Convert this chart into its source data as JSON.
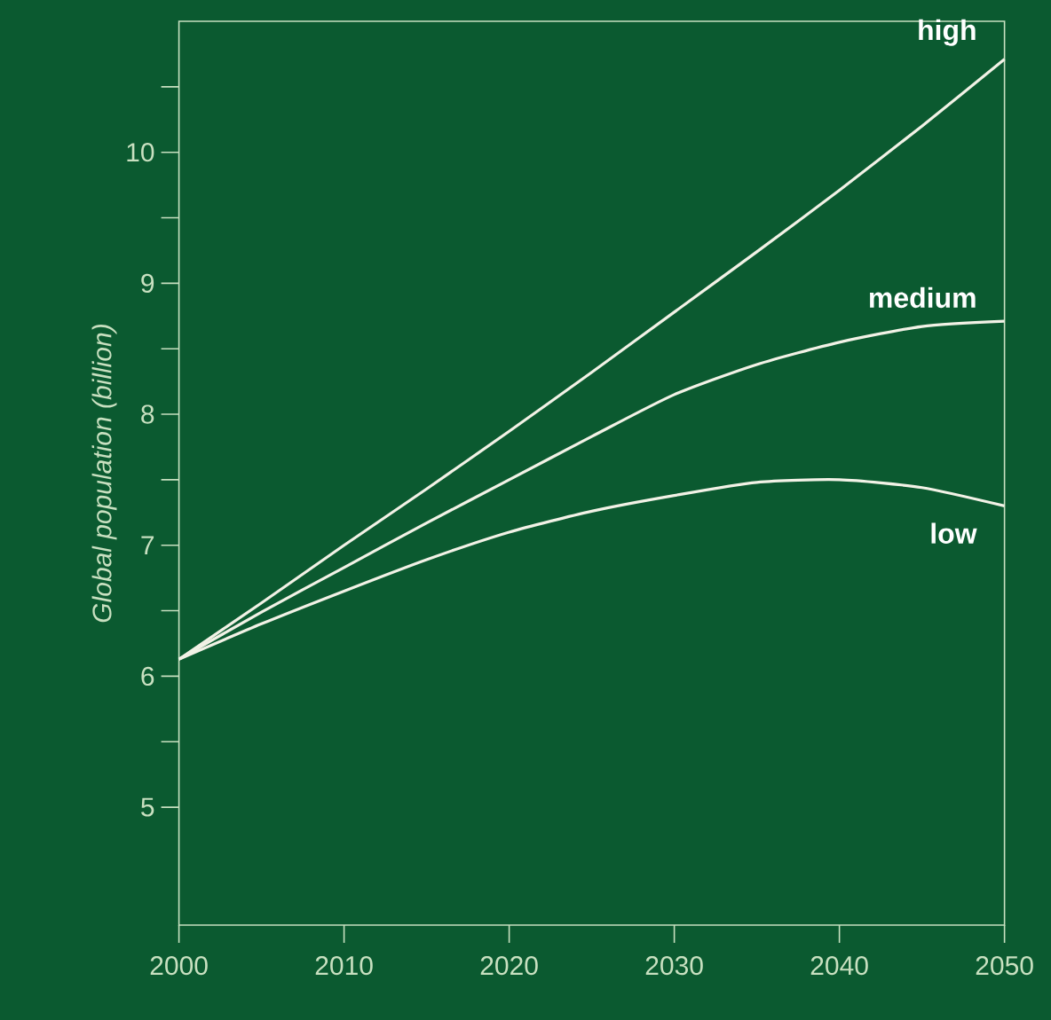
{
  "chart_data": {
    "type": "line",
    "ylabel": "Global population (billion)",
    "x": [
      2000,
      2005,
      2010,
      2015,
      2020,
      2025,
      2030,
      2035,
      2040,
      2045,
      2050
    ],
    "series": [
      {
        "name": "high",
        "color": "#f2f2e6",
        "values": [
          6.13,
          6.56,
          7.0,
          7.43,
          7.87,
          8.32,
          8.78,
          9.24,
          9.71,
          10.2,
          10.71
        ]
      },
      {
        "name": "medium",
        "color": "#f2f2e6",
        "values": [
          6.13,
          6.49,
          6.83,
          7.17,
          7.5,
          7.83,
          8.15,
          8.38,
          8.55,
          8.67,
          8.71
        ]
      },
      {
        "name": "low",
        "color": "#f2f2e6",
        "values": [
          6.13,
          6.4,
          6.65,
          6.89,
          7.1,
          7.26,
          7.38,
          7.48,
          7.5,
          7.44,
          7.3
        ]
      }
    ],
    "xlim": [
      2000,
      2050
    ],
    "ylim": [
      4.1,
      11
    ],
    "xticks": [
      2000,
      2010,
      2020,
      2030,
      2040,
      2050
    ],
    "yticks": [
      5,
      {
        "value": 5.5,
        "label": null
      },
      6,
      {
        "value": 6.5,
        "label": null
      },
      7,
      {
        "value": 7.5,
        "label": null
      },
      8,
      {
        "value": 8.5,
        "label": null
      },
      9,
      {
        "value": 9.5,
        "label": null
      },
      10,
      {
        "value": 10.5,
        "label": null
      }
    ],
    "grid": false,
    "legend": false,
    "marker": "none",
    "line_style": "solid"
  }
}
